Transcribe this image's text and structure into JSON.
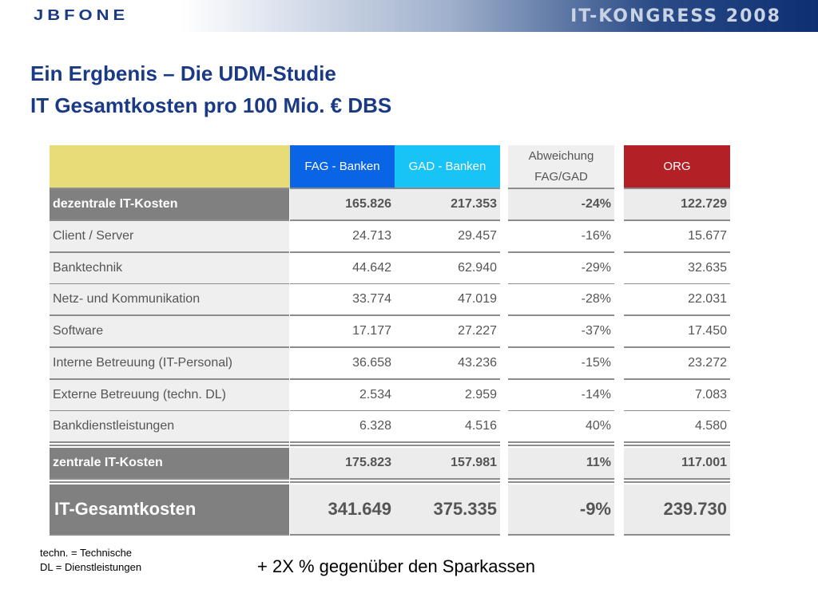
{
  "header": {
    "logo": "JBFONE",
    "event": "IT-KONGRESS 2008"
  },
  "title": {
    "line1": "Ein Ergbenis – Die UDM-Studie",
    "line2": "IT Gesamtkosten pro 100 Mio. € DBS"
  },
  "table": {
    "columns": [
      "FAG - Banken",
      "GAD - Banken",
      "Abweichung FAG/GAD",
      "ORG"
    ],
    "subtotal_decentral": {
      "label": "dezentrale IT-Kosten",
      "fag": "165.826",
      "gad": "217.353",
      "diff": "-24%",
      "org": "122.729"
    },
    "rows": [
      {
        "label": "Client / Server",
        "fag": "24.713",
        "gad": "29.457",
        "diff": "-16%",
        "org": "15.677"
      },
      {
        "label": "Banktechnik",
        "fag": "44.642",
        "gad": "62.940",
        "diff": "-29%",
        "org": "32.635"
      },
      {
        "label": "Netz- und Kommunikation",
        "fag": "33.774",
        "gad": "47.019",
        "diff": "-28%",
        "org": "22.031"
      },
      {
        "label": "Software",
        "fag": "17.177",
        "gad": "27.227",
        "diff": "-37%",
        "org": "17.450"
      },
      {
        "label": "Interne Betreuung (IT-Personal)",
        "fag": "36.658",
        "gad": "43.236",
        "diff": "-15%",
        "org": "23.272"
      },
      {
        "label": "Externe Betreuung (techn. DL)",
        "fag": "2.534",
        "gad": "2.959",
        "diff": "-14%",
        "org": "7.083"
      },
      {
        "label": "Bankdienstleistungen",
        "fag": "6.328",
        "gad": "4.516",
        "diff": "40%",
        "org": "4.580"
      }
    ],
    "subtotal_central": {
      "label": "zentrale IT-Kosten",
      "fag": "175.823",
      "gad": "157.981",
      "diff": "11%",
      "org": "117.001"
    },
    "total": {
      "label": "IT-Gesamtkosten",
      "fag": "341.649",
      "gad": "375.335",
      "diff": "-9%",
      "org": "239.730"
    }
  },
  "footnotes": [
    "techn. = Technische",
    "DL = Dienstleistungen"
  ],
  "tagline": "+ 2X % gegenüber den Sparkassen",
  "colors": {
    "title": "#1a3a85",
    "fag_header": "#0a64e6",
    "gad_header": "#18c3f5",
    "org_header": "#b32025",
    "corner_yellow": "#e8dc78",
    "row_dark": "#808080",
    "row_light": "#efefef"
  }
}
